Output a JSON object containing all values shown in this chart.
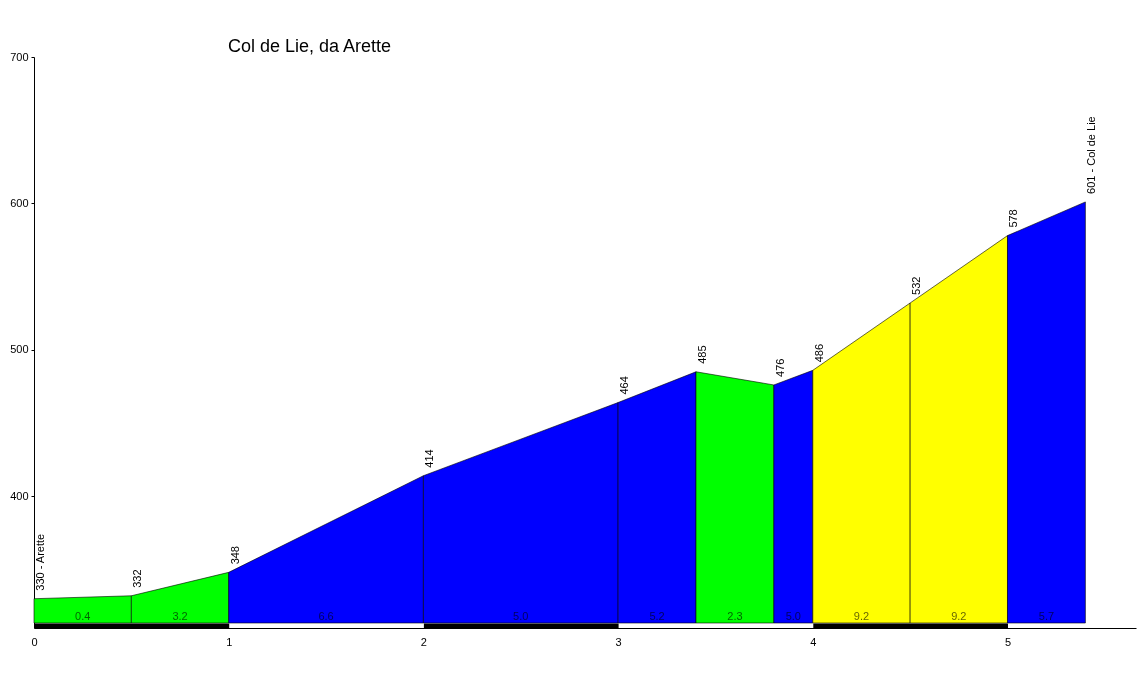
{
  "chart_data": {
    "type": "area",
    "title": "Col de Lie, da Arette",
    "series": [
      {
        "color": "#00ff00",
        "x": [
          0,
          0.5
        ],
        "values": [
          330,
          332
        ]
      },
      {
        "color": "#00ff00",
        "x": [
          0.5,
          1
        ],
        "values": [
          332,
          348
        ]
      },
      {
        "color": "#0000ff",
        "x": [
          1,
          2
        ],
        "values": [
          348,
          414
        ]
      },
      {
        "color": "#0000ff",
        "x": [
          2,
          3
        ],
        "values": [
          414,
          464
        ]
      },
      {
        "color": "#0000ff",
        "x": [
          3,
          3.4
        ],
        "values": [
          464,
          485
        ]
      },
      {
        "color": "#00ff00",
        "x": [
          3.4,
          3.8
        ],
        "values": [
          485,
          476
        ]
      },
      {
        "color": "#0000ff",
        "x": [
          3.8,
          4
        ],
        "values": [
          476,
          486
        ]
      },
      {
        "color": "#ffff00",
        "x": [
          4,
          4.5
        ],
        "values": [
          486,
          532
        ]
      },
      {
        "color": "#ffff00",
        "x": [
          4.5,
          5
        ],
        "values": [
          532,
          578
        ]
      },
      {
        "color": "#0000ff",
        "x": [
          5,
          5.4
        ],
        "values": [
          578,
          601
        ]
      }
    ],
    "xlim": [
      0,
      5.66
    ],
    "xticks": [
      0,
      1,
      2,
      3,
      4,
      5
    ],
    "ylim": [
      310,
      700
    ],
    "yticks": [
      400,
      500,
      600,
      700
    ],
    "annotations": [
      {
        "text": "330 - Arette",
        "x": 0,
        "y": 330
      },
      {
        "text": "332",
        "x": 0.5,
        "y": 332
      },
      {
        "text": "348",
        "x": 1,
        "y": 348
      },
      {
        "text": "414",
        "x": 2,
        "y": 414
      },
      {
        "text": "464",
        "x": 3,
        "y": 464
      },
      {
        "text": "485",
        "x": 3.4,
        "y": 485
      },
      {
        "text": "476",
        "x": 3.8,
        "y": 476
      },
      {
        "text": "486",
        "x": 4,
        "y": 486
      },
      {
        "text": "532",
        "x": 4.5,
        "y": 532
      },
      {
        "text": "578",
        "x": 5,
        "y": 578
      },
      {
        "text": "601 - Col de Lie",
        "x": 5.4,
        "y": 601
      },
      "0.4",
      "3.2",
      "6.6",
      "5.0",
      "5.2",
      "2.3",
      "5.0",
      "9.2",
      "9.2",
      "5.7"
    ]
  }
}
